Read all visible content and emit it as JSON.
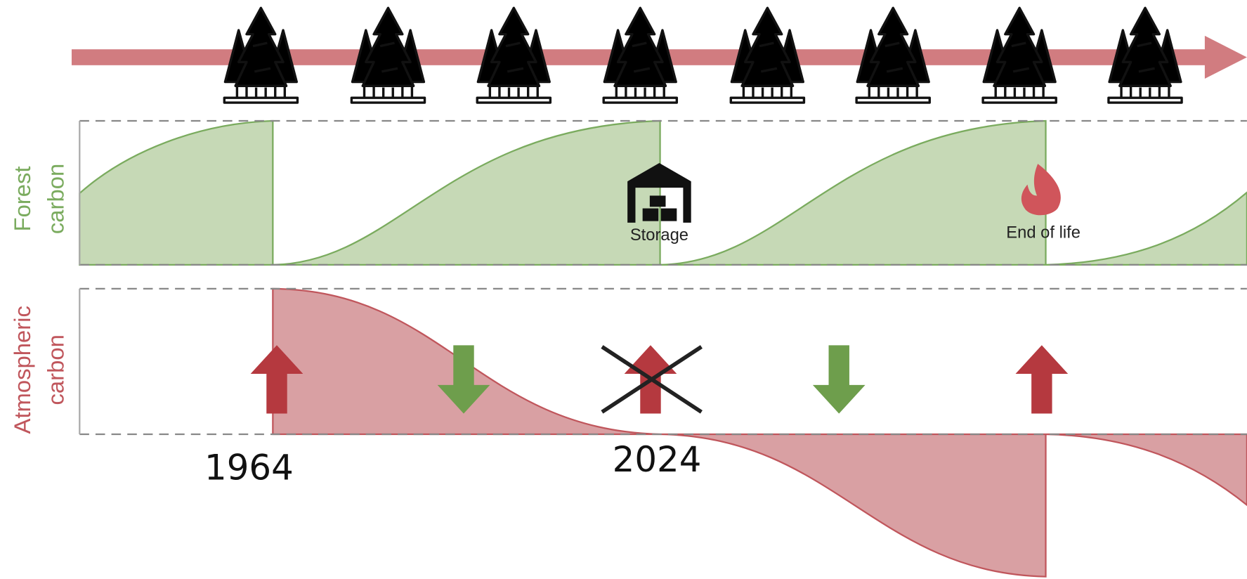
{
  "diagram": {
    "forest_label": [
      "Forest",
      "carbon"
    ],
    "atmospheric_label": [
      "Atmospheric",
      "carbon"
    ],
    "storage_label": "Storage",
    "end_of_life_label": "End of life",
    "years": [
      "1964",
      "2024"
    ]
  }
}
